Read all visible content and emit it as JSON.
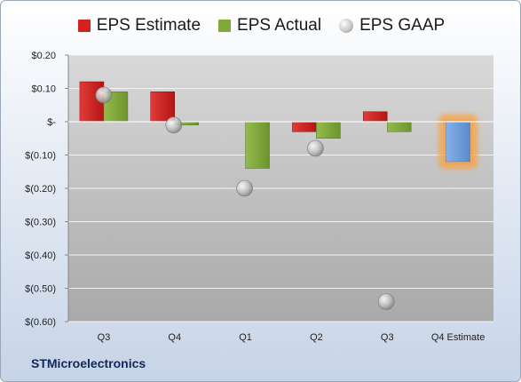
{
  "company": "STMicroelectronics",
  "legend": [
    {
      "name": "EPS Estimate",
      "color": "#d42020",
      "kind": "bar"
    },
    {
      "name": "EPS Actual",
      "color": "#80a93a",
      "kind": "bar"
    },
    {
      "name": "EPS GAAP",
      "color": "#b8b8b8",
      "kind": "dot"
    }
  ],
  "chart_data": {
    "type": "bar",
    "categories": [
      "Q3",
      "Q4",
      "Q1",
      "Q2",
      "Q3",
      "Q4 Estimate"
    ],
    "series": [
      {
        "name": "EPS Estimate",
        "color": "#d42020",
        "values": [
          0.12,
          0.09,
          null,
          -0.03,
          0.03,
          null
        ]
      },
      {
        "name": "EPS Actual",
        "color": "#80a93a",
        "values": [
          0.09,
          -0.01,
          -0.14,
          -0.05,
          -0.03,
          null
        ]
      },
      {
        "name": "EPS GAAP",
        "color": "#b8b8b8",
        "type": "scatter",
        "values": [
          0.08,
          -0.01,
          -0.2,
          -0.08,
          -0.54,
          null
        ]
      }
    ],
    "forecast": {
      "category": "Q4 Estimate",
      "value": -0.12,
      "color": "#6f9fdc",
      "highlight": "#f5a54a"
    },
    "ylim": [
      -0.6,
      0.2
    ],
    "yticks": [
      {
        "value": 0.2,
        "label": "$0.20"
      },
      {
        "value": 0.1,
        "label": "$0.10"
      },
      {
        "value": 0.0,
        "label": "$-"
      },
      {
        "value": -0.1,
        "label": "$(0.10)"
      },
      {
        "value": -0.2,
        "label": "$(0.20)"
      },
      {
        "value": -0.3,
        "label": "$(0.30)"
      },
      {
        "value": -0.4,
        "label": "$(0.40)"
      },
      {
        "value": -0.5,
        "label": "$(0.50)"
      },
      {
        "value": -0.6,
        "label": "$(0.60)"
      }
    ],
    "grid": true,
    "legend_position": "top"
  }
}
